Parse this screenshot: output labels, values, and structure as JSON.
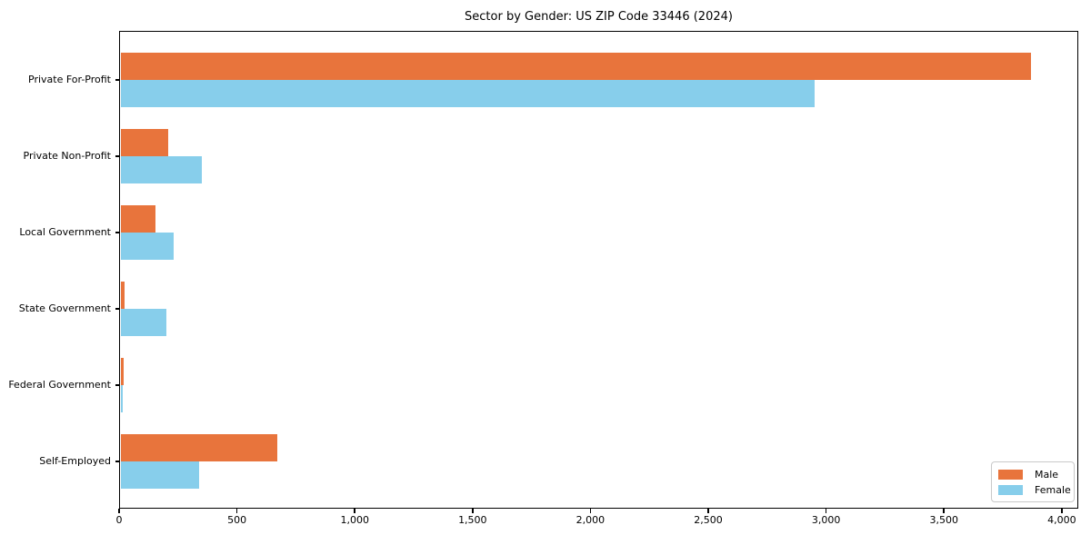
{
  "chart_data": {
    "type": "bar",
    "orientation": "horizontal",
    "title": "Sector by Gender: US ZIP Code 33446 (2024)",
    "categories": [
      "Private For-Profit",
      "Private Non-Profit",
      "Local Government",
      "State Government",
      "Federal Government",
      "Self-Employed"
    ],
    "series": [
      {
        "name": "Male",
        "color": "#e8743c",
        "values": [
          3870,
          210,
          155,
          25,
          20,
          670
        ]
      },
      {
        "name": "Female",
        "color": "#87ceeb",
        "values": [
          2950,
          350,
          230,
          200,
          15,
          340
        ]
      }
    ],
    "xlim": [
      0,
      4070
    ],
    "x_ticks": [
      0,
      500,
      1000,
      1500,
      2000,
      2500,
      3000,
      3500,
      4000
    ],
    "x_tick_labels": [
      "0",
      "500",
      "1,000",
      "1,500",
      "2,000",
      "2,500",
      "3,000",
      "3,500",
      "4,000"
    ],
    "xlabel": "",
    "ylabel": "",
    "grid": false,
    "legend_position": "lower right",
    "legend_items": [
      {
        "label": "Male",
        "color": "#e8743c"
      },
      {
        "label": "Female",
        "color": "#87ceeb"
      }
    ]
  }
}
